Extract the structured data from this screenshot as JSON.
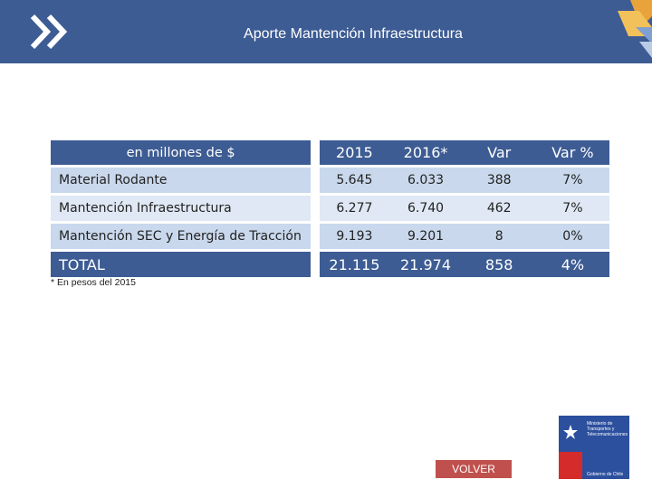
{
  "header": {
    "title": "Aporte Mantención Infraestructura",
    "background_color": "#3d5c93"
  },
  "table": {
    "header_label": "en millones de $",
    "columns": [
      "2015",
      "2016*",
      "Var",
      "Var %"
    ],
    "rows": [
      {
        "name": "Material Rodante",
        "values": [
          "5.645",
          "6.033",
          "388",
          "7%"
        ]
      },
      {
        "name": "Mantención Infraestructura",
        "values": [
          "6.277",
          "6.740",
          "462",
          "7%"
        ]
      },
      {
        "name": "Mantención SEC y Energía de Tracción",
        "values": [
          "9.193",
          "9.201",
          "8",
          "0%"
        ]
      }
    ],
    "total": {
      "name": "TOTAL",
      "values": [
        "21.115",
        "21.974",
        "858",
        "4%"
      ]
    }
  },
  "footnote": "* En pesos del 2015",
  "volver_label": "VOLVER",
  "logo": {
    "line1": "Ministerio de",
    "line2": "Transportes y",
    "line3": "Telecomunicaciones",
    "bottom": "Gobierno de Chile"
  }
}
